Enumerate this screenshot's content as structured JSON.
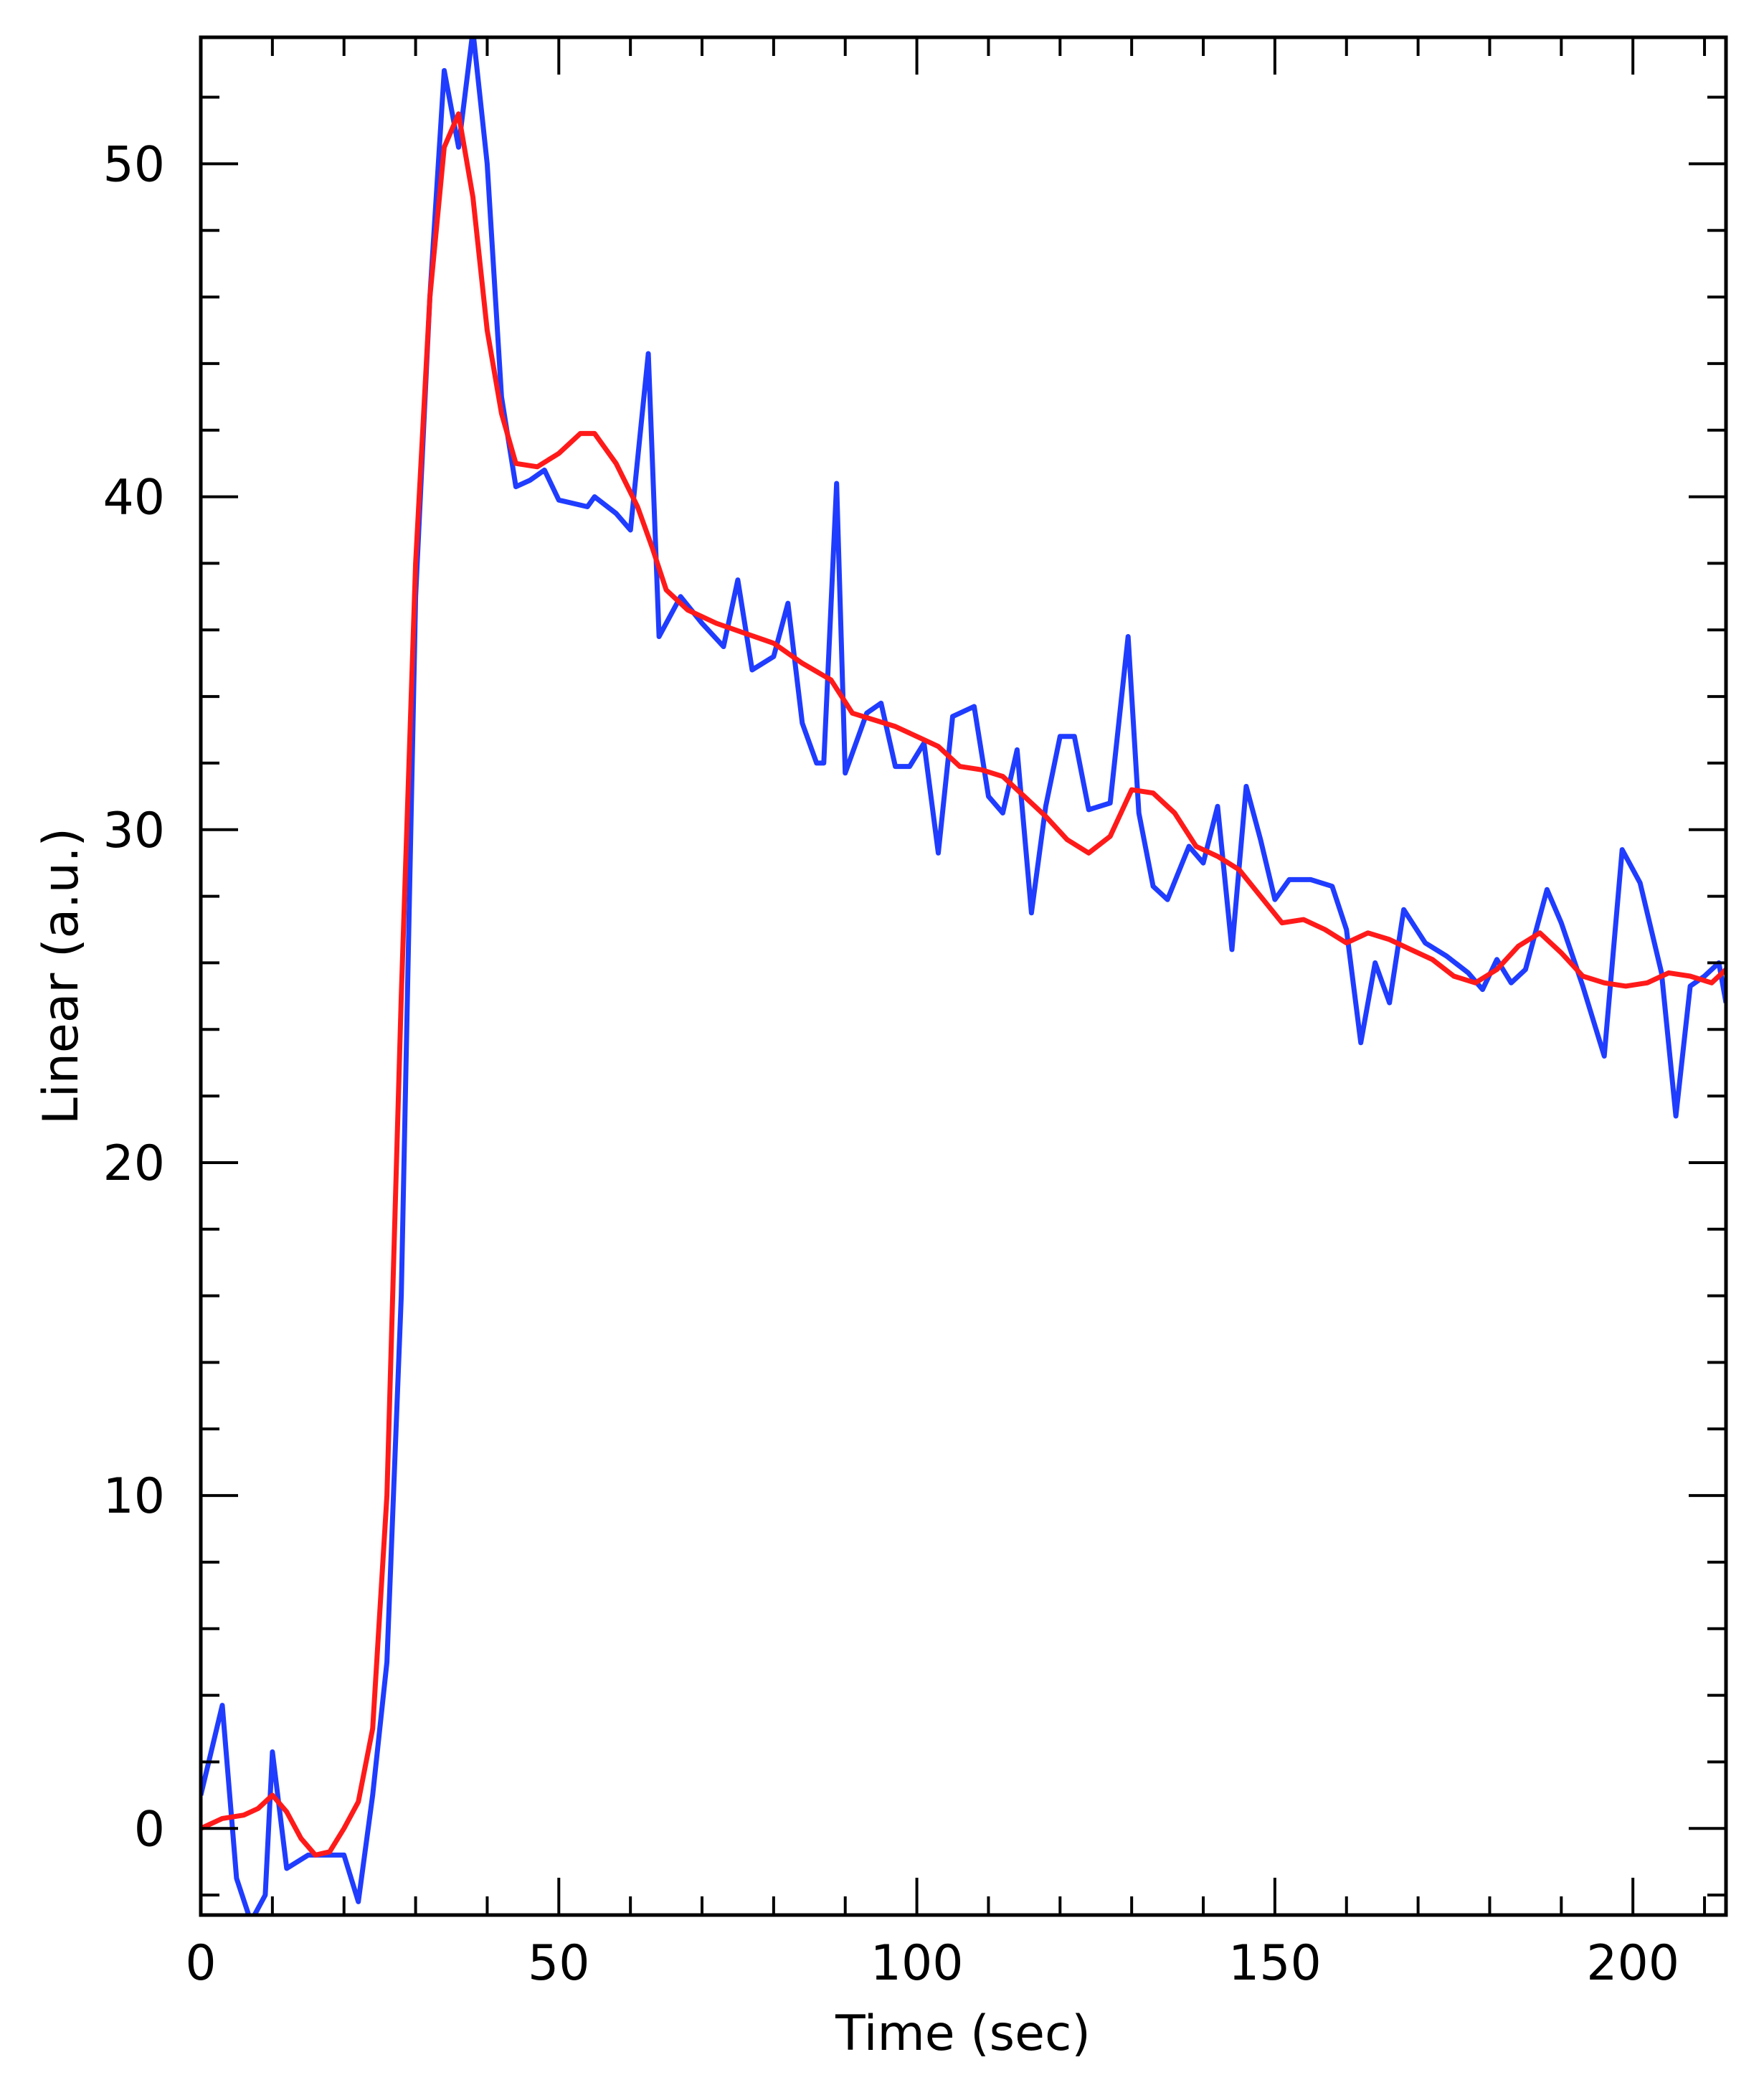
{
  "chart_data": {
    "type": "line",
    "x_label": "Time (sec)",
    "y_label": "Linear (a.u.)",
    "xlim": [
      0,
      213
    ],
    "ylim": [
      -2.6,
      53.8
    ],
    "xticks": [
      0,
      50,
      100,
      150,
      200
    ],
    "xticks_minor": [
      10,
      20,
      30,
      40,
      60,
      70,
      80,
      90,
      110,
      120,
      130,
      140,
      160,
      170,
      180,
      190,
      210
    ],
    "yticks": [
      0,
      10,
      20,
      30,
      40,
      50
    ],
    "yticks_minor": [
      -2,
      2,
      4,
      6,
      8,
      12,
      14,
      16,
      18,
      22,
      24,
      26,
      28,
      32,
      34,
      36,
      38,
      42,
      44,
      46,
      48,
      52
    ],
    "grid": false,
    "series": [
      {
        "color": "#1f3cff",
        "x": [
          0,
          3,
          5,
          7,
          9,
          10,
          12,
          15,
          18,
          20,
          22,
          24,
          26,
          28,
          30,
          32,
          34,
          36,
          38,
          40,
          42,
          44,
          46,
          48,
          50,
          54,
          55,
          58,
          60,
          62.5,
          64,
          67,
          70,
          73,
          75,
          77,
          80,
          82,
          84,
          86,
          87,
          88.8,
          90,
          93,
          95,
          97,
          99,
          101,
          103,
          105,
          108,
          110,
          112,
          114,
          116,
          118,
          120,
          122,
          124,
          127,
          129.5,
          131,
          133,
          135,
          138,
          140,
          142,
          144,
          146,
          148,
          150,
          152,
          155,
          158,
          160,
          162,
          164,
          166,
          168,
          171,
          174,
          177,
          179,
          181,
          183,
          185,
          188,
          190,
          193,
          196,
          198.5,
          201,
          204,
          206,
          208,
          210,
          212,
          213
        ],
        "values": [
          1,
          3.7,
          -1.5,
          -2.8,
          -2,
          2.3,
          -1.2,
          -0.8,
          -0.8,
          -0.8,
          -2.2,
          1,
          5,
          16,
          37,
          46,
          52.8,
          50.5,
          54,
          50,
          43,
          40.3,
          40.5,
          40.8,
          39.9,
          39.7,
          40,
          39.5,
          39,
          44.3,
          35.8,
          37,
          36.2,
          35.5,
          37.5,
          34.8,
          35.2,
          36.8,
          33.2,
          32,
          32,
          40.4,
          31.7,
          33.5,
          33.8,
          31.9,
          31.9,
          32.6,
          29.3,
          33.4,
          33.7,
          31,
          30.5,
          32.4,
          27.5,
          30.7,
          32.8,
          32.8,
          30.6,
          30.8,
          35.8,
          30.5,
          28.3,
          27.9,
          29.5,
          29,
          30.7,
          26.4,
          31.3,
          29.7,
          27.9,
          28.5,
          28.5,
          28.3,
          27,
          23.6,
          26,
          24.8,
          27.6,
          26.6,
          26.2,
          25.7,
          25.2,
          26.1,
          25.4,
          25.8,
          28.2,
          27.2,
          25.3,
          23.2,
          29.4,
          28.4,
          25.7,
          21.4,
          25.3,
          25.6,
          26,
          24.8
        ]
      },
      {
        "color": "#ff1a1a",
        "x": [
          0,
          3,
          6,
          8,
          10,
          12,
          14,
          16,
          18,
          20,
          22,
          24,
          26,
          28,
          30,
          32,
          34,
          36,
          38,
          40,
          42,
          44,
          47,
          50,
          53,
          55,
          58,
          61,
          63,
          65,
          68,
          72,
          76,
          80,
          84,
          88,
          91,
          94,
          97,
          100,
          103,
          106,
          109,
          112,
          115,
          118,
          121,
          124,
          127,
          130,
          133,
          136,
          139,
          142,
          145,
          148,
          151,
          154,
          157,
          160,
          163,
          166,
          169,
          172,
          175,
          178,
          181,
          184,
          187,
          190,
          193,
          196,
          199,
          202,
          205,
          208,
          211,
          213
        ],
        "values": [
          0,
          0.3,
          0.4,
          0.6,
          1,
          0.5,
          -0.3,
          -0.8,
          -0.7,
          0,
          0.8,
          3,
          10,
          25,
          38,
          46,
          50.5,
          51.5,
          49,
          45,
          42.5,
          41,
          40.9,
          41.3,
          41.9,
          41.9,
          41,
          39.7,
          38.5,
          37.2,
          36.6,
          36.2,
          35.9,
          35.6,
          35,
          34.5,
          33.5,
          33.3,
          33.1,
          32.8,
          32.5,
          31.9,
          31.8,
          31.6,
          31,
          30.4,
          29.7,
          29.3,
          29.8,
          31.2,
          31.1,
          30.5,
          29.5,
          29.2,
          28.8,
          28,
          27.2,
          27.3,
          27,
          26.6,
          26.9,
          26.7,
          26.4,
          26.1,
          25.6,
          25.4,
          25.8,
          26.5,
          26.9,
          26.3,
          25.6,
          25.4,
          25.3,
          25.4,
          25.7,
          25.6,
          25.4,
          25.8
        ]
      }
    ]
  }
}
